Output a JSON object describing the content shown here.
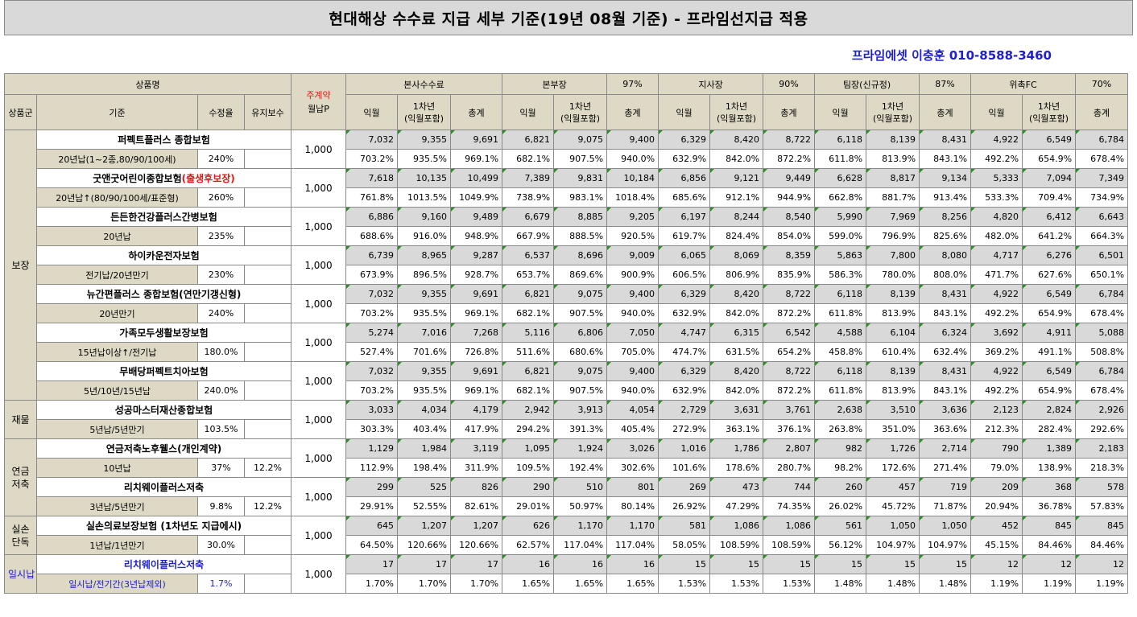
{
  "title": "현대해상 수수료 지급 세부 기준(19년 08월 기준) - 프라임선지급 적용",
  "contact": "프라임에셋 이충훈 010-8588-3460",
  "header": {
    "product_name": "상품명",
    "premium_top": "주계약",
    "premium_bottom": "월납P",
    "hq": "본사수수료",
    "bonbu": "본부장",
    "bonbu_pct": "97%",
    "jisa": "지사장",
    "jisa_pct": "90%",
    "team": "팀장(신규정)",
    "team_pct": "87%",
    "fc": "위촉FC",
    "fc_pct": "70%",
    "group": "상품군",
    "criteria": "기준",
    "rate": "수정율",
    "maintain": "유지보수",
    "c1": "익월",
    "c2a": "1차년",
    "c2b": "(익월포함)",
    "c3": "총계"
  },
  "groups": {
    "bojang": "보장",
    "jaemul": "재물",
    "yeongeum_a": "연금",
    "yeongeum_b": "저축",
    "silson_a": "실손",
    "silson_b": "단독",
    "ilsi": "일시납"
  },
  "products": [
    {
      "name": "퍼펙트플러스 종합보험",
      "name_red": "",
      "criteria": "20년납(1~2종,80/90/100세)",
      "rate": "240%",
      "maintain": "",
      "premium": "1,000",
      "vals": [
        "7,032",
        "9,355",
        "9,691",
        "6,821",
        "9,075",
        "9,400",
        "6,329",
        "8,420",
        "8,722",
        "6,118",
        "8,139",
        "8,431",
        "4,922",
        "6,549",
        "6,784"
      ],
      "pcts": [
        "703.2%",
        "935.5%",
        "969.1%",
        "682.1%",
        "907.5%",
        "940.0%",
        "632.9%",
        "842.0%",
        "872.2%",
        "611.8%",
        "813.9%",
        "843.1%",
        "492.2%",
        "654.9%",
        "678.4%"
      ]
    },
    {
      "name": "굿앤굿어린이종합보험",
      "name_red": "(출생후보장)",
      "criteria": "20년납↑(80/90/100세/표준형)",
      "rate": "260%",
      "maintain": "",
      "premium": "1,000",
      "vals": [
        "7,618",
        "10,135",
        "10,499",
        "7,389",
        "9,831",
        "10,184",
        "6,856",
        "9,121",
        "9,449",
        "6,628",
        "8,817",
        "9,134",
        "5,333",
        "7,094",
        "7,349"
      ],
      "pcts": [
        "761.8%",
        "1013.5%",
        "1049.9%",
        "738.9%",
        "983.1%",
        "1018.4%",
        "685.6%",
        "912.1%",
        "944.9%",
        "662.8%",
        "881.7%",
        "913.4%",
        "533.3%",
        "709.4%",
        "734.9%"
      ]
    },
    {
      "name": "든든한건강플러스간병보험",
      "name_red": "",
      "criteria": "20년납",
      "rate": "235%",
      "maintain": "",
      "premium": "1,000",
      "vals": [
        "6,886",
        "9,160",
        "9,489",
        "6,679",
        "8,885",
        "9,205",
        "6,197",
        "8,244",
        "8,540",
        "5,990",
        "7,969",
        "8,256",
        "4,820",
        "6,412",
        "6,643"
      ],
      "pcts": [
        "688.6%",
        "916.0%",
        "948.9%",
        "667.9%",
        "888.5%",
        "920.5%",
        "619.7%",
        "824.4%",
        "854.0%",
        "599.0%",
        "796.9%",
        "825.6%",
        "482.0%",
        "641.2%",
        "664.3%"
      ]
    },
    {
      "name": "하이카운전자보험",
      "name_red": "",
      "criteria": "전기납/20년만기",
      "rate": "230%",
      "maintain": "",
      "premium": "1,000",
      "vals": [
        "6,739",
        "8,965",
        "9,287",
        "6,537",
        "8,696",
        "9,009",
        "6,065",
        "8,069",
        "8,359",
        "5,863",
        "7,800",
        "8,080",
        "4,717",
        "6,276",
        "6,501"
      ],
      "pcts": [
        "673.9%",
        "896.5%",
        "928.7%",
        "653.7%",
        "869.6%",
        "900.9%",
        "606.5%",
        "806.9%",
        "835.9%",
        "586.3%",
        "780.0%",
        "808.0%",
        "471.7%",
        "627.6%",
        "650.1%"
      ]
    },
    {
      "name": "뉴간편플러스 종합보험(연만기갱신형)",
      "name_red": "",
      "criteria": "20년만기",
      "rate": "240%",
      "maintain": "",
      "premium": "1,000",
      "vals": [
        "7,032",
        "9,355",
        "9,691",
        "6,821",
        "9,075",
        "9,400",
        "6,329",
        "8,420",
        "8,722",
        "6,118",
        "8,139",
        "8,431",
        "4,922",
        "6,549",
        "6,784"
      ],
      "pcts": [
        "703.2%",
        "935.5%",
        "969.1%",
        "682.1%",
        "907.5%",
        "940.0%",
        "632.9%",
        "842.0%",
        "872.2%",
        "611.8%",
        "813.9%",
        "843.1%",
        "492.2%",
        "654.9%",
        "678.4%"
      ]
    },
    {
      "name": "가족모두생활보장보험",
      "name_red": "",
      "criteria": "15년납이상↑/전기납",
      "rate": "180.0%",
      "maintain": "",
      "premium": "1,000",
      "vals": [
        "5,274",
        "7,016",
        "7,268",
        "5,116",
        "6,806",
        "7,050",
        "4,747",
        "6,315",
        "6,542",
        "4,588",
        "6,104",
        "6,324",
        "3,692",
        "4,911",
        "5,088"
      ],
      "pcts": [
        "527.4%",
        "701.6%",
        "726.8%",
        "511.6%",
        "680.6%",
        "705.0%",
        "474.7%",
        "631.5%",
        "654.2%",
        "458.8%",
        "610.4%",
        "632.4%",
        "369.2%",
        "491.1%",
        "508.8%"
      ]
    },
    {
      "name": "무배당퍼펙트치아보험",
      "name_red": "",
      "criteria": "5년/10년/15년납",
      "rate": "240.0%",
      "maintain": "",
      "premium": "1,000",
      "vals": [
        "7,032",
        "9,355",
        "9,691",
        "6,821",
        "9,075",
        "9,400",
        "6,329",
        "8,420",
        "8,722",
        "6,118",
        "8,139",
        "8,431",
        "4,922",
        "6,549",
        "6,784"
      ],
      "pcts": [
        "703.2%",
        "935.5%",
        "969.1%",
        "682.1%",
        "907.5%",
        "940.0%",
        "632.9%",
        "842.0%",
        "872.2%",
        "611.8%",
        "813.9%",
        "843.1%",
        "492.2%",
        "654.9%",
        "678.4%"
      ]
    },
    {
      "name": "성공마스터재산종합보험",
      "name_red": "",
      "criteria": "5년납/5년만기",
      "rate": "103.5%",
      "maintain": "",
      "premium": "1,000",
      "vals": [
        "3,033",
        "4,034",
        "4,179",
        "2,942",
        "3,913",
        "4,054",
        "2,729",
        "3,631",
        "3,761",
        "2,638",
        "3,510",
        "3,636",
        "2,123",
        "2,824",
        "2,926"
      ],
      "pcts": [
        "303.3%",
        "403.4%",
        "417.9%",
        "294.2%",
        "391.3%",
        "405.4%",
        "272.9%",
        "363.1%",
        "376.1%",
        "263.8%",
        "351.0%",
        "363.6%",
        "212.3%",
        "282.4%",
        "292.6%"
      ]
    },
    {
      "name": "연금저축노후웰스(개인계약)",
      "name_red": "",
      "criteria": "10년납",
      "rate": "37%",
      "maintain": "12.2%",
      "premium": "1,000",
      "vals": [
        "1,129",
        "1,984",
        "3,119",
        "1,095",
        "1,924",
        "3,026",
        "1,016",
        "1,786",
        "2,807",
        "982",
        "1,726",
        "2,714",
        "790",
        "1,389",
        "2,183"
      ],
      "pcts": [
        "112.9%",
        "198.4%",
        "311.9%",
        "109.5%",
        "192.4%",
        "302.6%",
        "101.6%",
        "178.6%",
        "280.7%",
        "98.2%",
        "172.6%",
        "271.4%",
        "79.0%",
        "138.9%",
        "218.3%"
      ]
    },
    {
      "name": "리치웨이플러스저축",
      "name_red": "",
      "criteria": "3년납/5년만기",
      "rate": "9.8%",
      "maintain": "12.2%",
      "premium": "1,000",
      "vals": [
        "299",
        "525",
        "826",
        "290",
        "510",
        "801",
        "269",
        "473",
        "744",
        "260",
        "457",
        "719",
        "209",
        "368",
        "578"
      ],
      "pcts": [
        "29.91%",
        "52.55%",
        "82.61%",
        "29.01%",
        "50.97%",
        "80.14%",
        "26.92%",
        "47.29%",
        "74.35%",
        "26.02%",
        "45.72%",
        "71.87%",
        "20.94%",
        "36.78%",
        "57.83%"
      ]
    },
    {
      "name": "실손의료보장보험 (1차년도 지급에시)",
      "name_red": "",
      "criteria": "1년납/1년만기",
      "rate": "30.0%",
      "maintain": "",
      "premium": "1,000",
      "vals": [
        "645",
        "1,207",
        "1,207",
        "626",
        "1,170",
        "1,170",
        "581",
        "1,086",
        "1,086",
        "561",
        "1,050",
        "1,050",
        "452",
        "845",
        "845"
      ],
      "pcts": [
        "64.50%",
        "120.66%",
        "120.66%",
        "62.57%",
        "117.04%",
        "117.04%",
        "58.05%",
        "108.59%",
        "108.59%",
        "56.12%",
        "104.97%",
        "104.97%",
        "45.15%",
        "84.46%",
        "84.46%"
      ]
    },
    {
      "name": "리치웨이플러스저축",
      "name_red": "",
      "criteria": "일시납/전기간(3년납제외)",
      "rate": "1.7%",
      "maintain": "",
      "premium": "1,000",
      "vals": [
        "17",
        "17",
        "17",
        "16",
        "16",
        "16",
        "15",
        "15",
        "15",
        "15",
        "15",
        "15",
        "12",
        "12",
        "12"
      ],
      "pcts": [
        "1.70%",
        "1.70%",
        "1.70%",
        "1.65%",
        "1.65%",
        "1.65%",
        "1.53%",
        "1.53%",
        "1.53%",
        "1.48%",
        "1.48%",
        "1.48%",
        "1.19%",
        "1.19%",
        "1.19%"
      ]
    }
  ],
  "colors": {
    "header_bg": "#ddd9c4",
    "value_bg": "#d9d9d9",
    "accent_red": "#e11111",
    "accent_blue": "#2020cc",
    "contact_blue": "#1f1fd0"
  }
}
